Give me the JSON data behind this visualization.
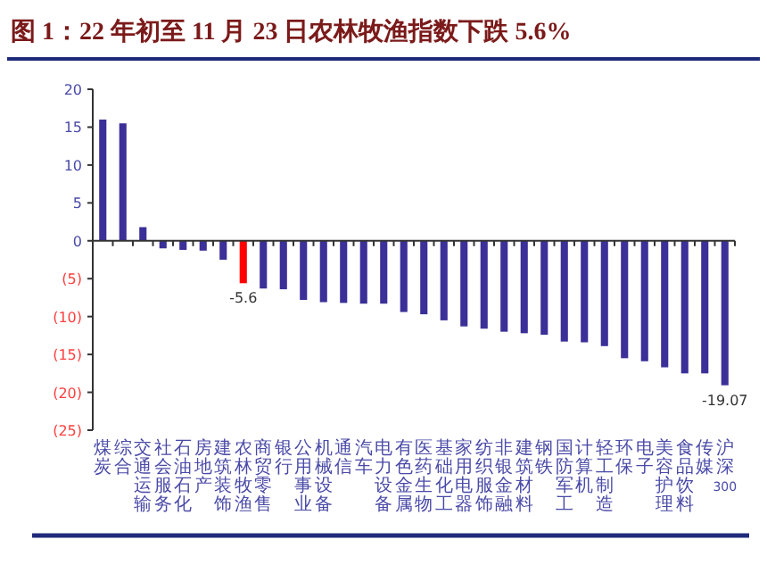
{
  "chart_data": {
    "type": "bar",
    "title": "图 1：22 年初至 11 月 23 日农林牧渔指数下跌 5.6%",
    "categories": [
      "煤炭",
      "综合",
      "交通运输",
      "社会服务",
      "石油石化",
      "房地产",
      "建筑装饰",
      "农林牧渔",
      "商贸零售",
      "银行",
      "公用事业",
      "机械设备",
      "通信",
      "汽车",
      "电力设备",
      "有色金属",
      "医药生物",
      "基础化工",
      "家用电器",
      "纺织服饰",
      "非银金融",
      "建筑材料",
      "钢铁",
      "国防军工",
      "计算机",
      "轻工制造",
      "环保",
      "电子",
      "美容护理",
      "食品饮料",
      "传媒",
      "沪深300"
    ],
    "values": [
      16.0,
      15.5,
      1.8,
      -1.0,
      -1.2,
      -1.3,
      -2.5,
      -5.6,
      -6.3,
      -6.4,
      -7.8,
      -8.1,
      -8.2,
      -8.3,
      -8.3,
      -9.4,
      -9.7,
      -10.5,
      -11.3,
      -11.6,
      -12.0,
      -12.2,
      -12.4,
      -13.3,
      -13.4,
      -13.9,
      -15.5,
      -15.9,
      -16.7,
      -17.5,
      -17.5,
      -19.07
    ],
    "colors": [
      "#3b2f98",
      "#3b2f98",
      "#3b2f98",
      "#3b2f98",
      "#3b2f98",
      "#3b2f98",
      "#3b2f98",
      "#ff0000",
      "#3b2f98",
      "#3b2f98",
      "#3b2f98",
      "#3b2f98",
      "#3b2f98",
      "#3b2f98",
      "#3b2f98",
      "#3b2f98",
      "#3b2f98",
      "#3b2f98",
      "#3b2f98",
      "#3b2f98",
      "#3b2f98",
      "#3b2f98",
      "#3b2f98",
      "#3b2f98",
      "#3b2f98",
      "#3b2f98",
      "#3b2f98",
      "#3b2f98",
      "#3b2f98",
      "#3b2f98",
      "#3b2f98",
      "#3b2f98"
    ],
    "value_labels": [
      null,
      null,
      null,
      null,
      null,
      null,
      null,
      "-5.6",
      null,
      null,
      null,
      null,
      null,
      null,
      null,
      null,
      null,
      null,
      null,
      null,
      null,
      null,
      null,
      null,
      null,
      null,
      null,
      null,
      null,
      null,
      null,
      "-19.07"
    ],
    "ylim": [
      -25,
      20
    ],
    "yticks": [
      20,
      15,
      10,
      5,
      0,
      {
        "value": -5,
        "label": "(5)"
      },
      {
        "value": -10,
        "label": "(10)"
      },
      {
        "value": -15,
        "label": "(15)"
      },
      {
        "value": -20,
        "label": "(20)"
      },
      {
        "value": -25,
        "label": "(25)"
      }
    ],
    "legend": false
  }
}
